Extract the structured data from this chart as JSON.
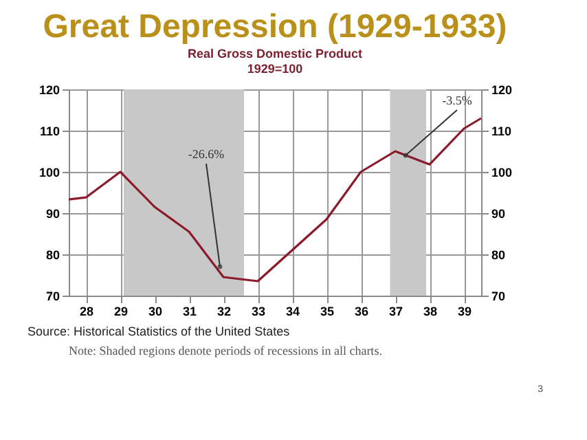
{
  "chart_data": {
    "type": "line",
    "title": "Great Depression (1929-1933)",
    "subtitle": [
      "Real Gross Domestic Product",
      "1929=100"
    ],
    "x": [
      1927.5,
      1928,
      1929,
      1930,
      1931,
      1932,
      1933,
      1934,
      1935,
      1936,
      1937,
      1938,
      1939,
      1939.5
    ],
    "series": [
      {
        "color": "#8b1a2b",
        "values": [
          93.3,
          93.8,
          100,
          91.5,
          85.5,
          74.5,
          73.5,
          81,
          88.5,
          100,
          105,
          101.8,
          110.5,
          113
        ]
      }
    ],
    "xlim": [
      1927.5,
      1939.5
    ],
    "xticks": [
      {
        "value": 1928,
        "label": "28"
      },
      {
        "value": 1929,
        "label": "29"
      },
      {
        "value": 1930,
        "label": "30"
      },
      {
        "value": 1931,
        "label": "31"
      },
      {
        "value": 1932,
        "label": "32"
      },
      {
        "value": 1933,
        "label": "33"
      },
      {
        "value": 1934,
        "label": "34"
      },
      {
        "value": 1935,
        "label": "35"
      },
      {
        "value": 1936,
        "label": "36"
      },
      {
        "value": 1937,
        "label": "37"
      },
      {
        "value": 1938,
        "label": "38"
      },
      {
        "value": 1939,
        "label": "39"
      }
    ],
    "ylim": [
      70,
      120
    ],
    "yticks": [
      70,
      80,
      90,
      100,
      110,
      120
    ],
    "y2lim": [
      70,
      120
    ],
    "y2ticks": [
      70,
      80,
      90,
      100,
      110,
      120
    ],
    "bands": [
      {
        "axis": "x",
        "from": 1929.1,
        "to": 1932.6,
        "color": "#c8c8c8"
      },
      {
        "axis": "x",
        "from": 1936.85,
        "to": 1937.9,
        "color": "#c8c8c8"
      }
    ],
    "annotations": [
      {
        "text": "-26.6%",
        "x": 1931.9,
        "y": 77
      },
      {
        "text": "-3.5%",
        "x": 1937.3,
        "y": 104
      },
      "Source: Historical Statistics of the United States",
      "Note:  Shaded regions denote periods of recessions in all charts.",
      "3"
    ],
    "grid": true,
    "line_style": "solid",
    "marker": "none"
  }
}
